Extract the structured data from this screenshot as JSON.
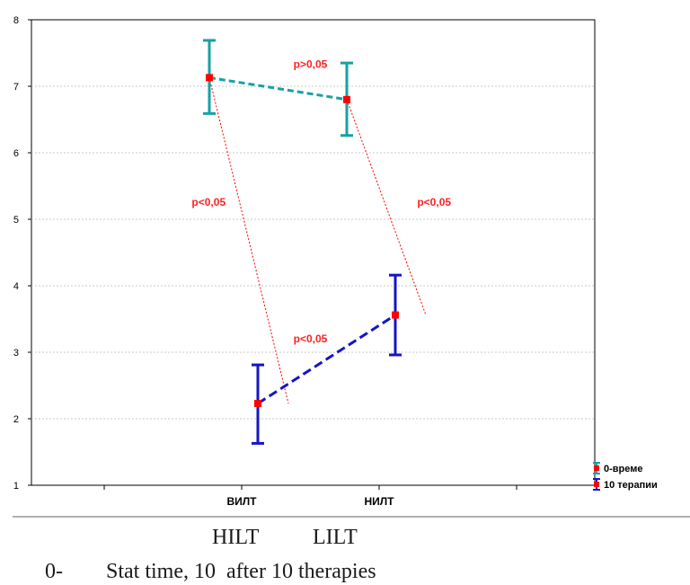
{
  "chart_data": {
    "type": "line",
    "categories": [
      "ВИЛТ",
      "НИЛТ"
    ],
    "ylim": [
      1,
      8
    ],
    "yticks": [
      1,
      2,
      3,
      4,
      5,
      6,
      7,
      8
    ],
    "grid": true,
    "series": [
      {
        "name": "0-време",
        "color": "#17a2a2",
        "values": [
          7.13,
          6.8
        ],
        "lower": [
          6.59,
          6.26
        ],
        "upper": [
          7.69,
          7.35
        ]
      },
      {
        "name": "10 терапии",
        "color": "#1414c8",
        "values": [
          2.23,
          3.56
        ],
        "lower": [
          1.63,
          2.96
        ],
        "upper": [
          2.81,
          4.16
        ]
      }
    ],
    "annotations": [
      {
        "text": "p>0,05",
        "x": 1.5,
        "y": 7.28
      },
      {
        "text": "p<0,05",
        "x": 0.76,
        "y": 5.2
      },
      {
        "text": "p<0,05",
        "x": 2.4,
        "y": 5.2
      },
      {
        "text": "p<0,05",
        "x": 1.5,
        "y": 3.15
      }
    ],
    "annotation_color": "#ff2020",
    "marker_color": "#ff0000",
    "legend_position": "bottom-right"
  },
  "caption": {
    "line1": "HILT          LILT",
    "line2": "0-        Stat time, 10  after 10 therapies"
  }
}
